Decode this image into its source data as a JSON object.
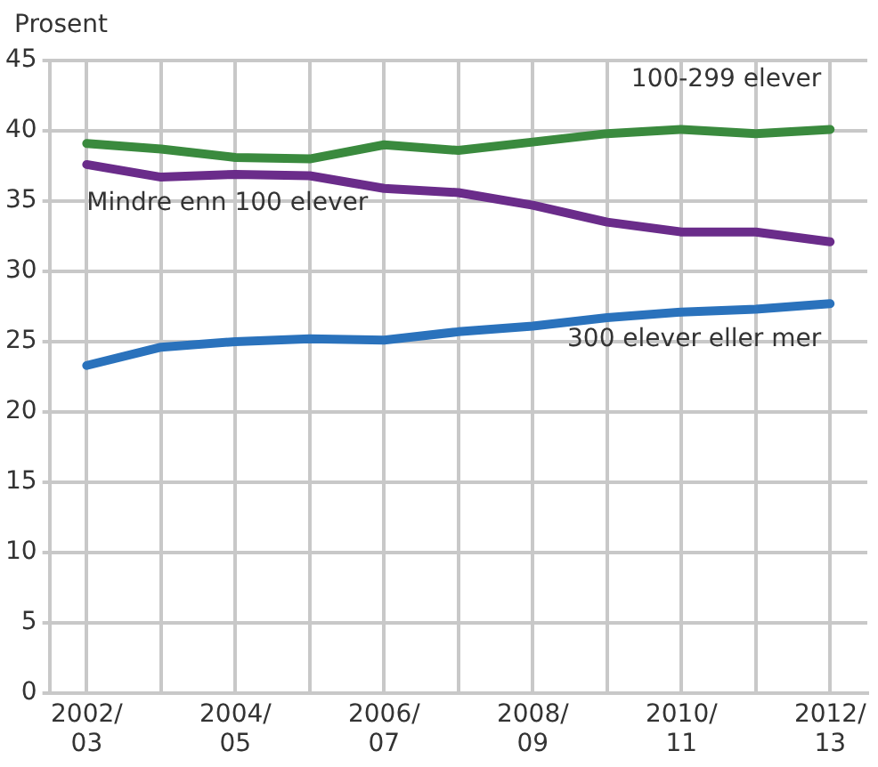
{
  "chart_data": {
    "type": "line",
    "ylabel": "Prosent",
    "categories": [
      "2002/03",
      null,
      "2004/05",
      null,
      "2006/07",
      null,
      "2008/09",
      null,
      "2010/11",
      null,
      "2012/13"
    ],
    "series": [
      {
        "name": "100-299 elever",
        "color": "#3a8a3e",
        "values": [
          39.1,
          38.7,
          38.1,
          38.0,
          39.0,
          38.6,
          39.2,
          39.8,
          40.1,
          39.8,
          40.1
        ]
      },
      {
        "name": "Mindre enn 100 elever",
        "color": "#6a2c8a",
        "values": [
          37.6,
          36.7,
          36.9,
          36.8,
          35.9,
          35.6,
          34.7,
          33.5,
          32.8,
          32.8,
          32.1
        ]
      },
      {
        "name": "300 elever eller mer",
        "color": "#2a72bc",
        "values": [
          23.3,
          24.6,
          25.0,
          25.2,
          25.1,
          25.7,
          26.1,
          26.7,
          27.1,
          27.3,
          27.7
        ]
      }
    ],
    "ylim": [
      0,
      45
    ],
    "yticks": [
      0,
      5,
      10,
      15,
      20,
      25,
      30,
      35,
      40,
      45
    ],
    "grid": true,
    "legend": false,
    "marker": "none",
    "line_style": "solid"
  }
}
